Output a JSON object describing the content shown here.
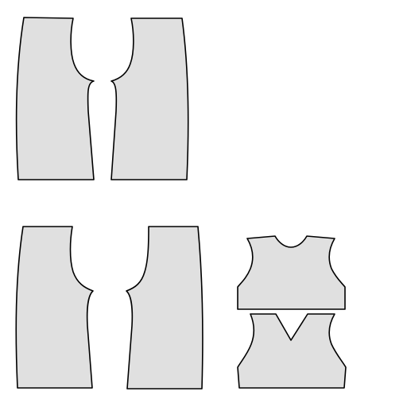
{
  "diagram": {
    "type": "garment-pattern-pieces",
    "fill_color": "#e0e0e0",
    "stroke_color": "#000000",
    "background_color": "#ffffff",
    "pieces": [
      {
        "name": "front-left-panel"
      },
      {
        "name": "front-right-panel"
      },
      {
        "name": "back-left-panel"
      },
      {
        "name": "back-right-panel"
      },
      {
        "name": "bodice-back"
      },
      {
        "name": "bodice-front-v-neck"
      }
    ]
  }
}
